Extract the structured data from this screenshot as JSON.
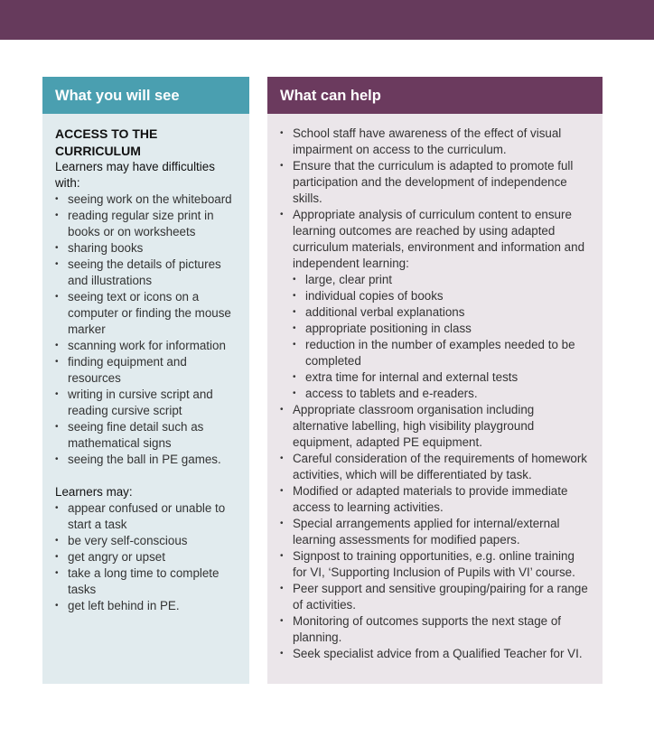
{
  "left": {
    "title": "What you will see",
    "heading": "ACCESS TO THE CURRICULUM",
    "intro": "Learners may have difficulties with:",
    "items": [
      "seeing work on the whiteboard",
      "reading regular size print in books or on worksheets",
      "sharing books",
      "seeing the details of pictures and illustrations",
      "seeing text or icons on a computer or finding the mouse marker",
      "scanning work for information",
      "finding equipment and resources",
      "writing in cursive script and reading cursive script",
      "seeing fine detail such as mathematical signs",
      "seeing the ball in PE games."
    ],
    "intro2": "Learners may:",
    "items2": [
      "appear confused or unable to start a task",
      "be very self-conscious",
      "get angry or upset",
      "take a long time to complete tasks",
      "get left behind in PE."
    ]
  },
  "right": {
    "title": "What can help",
    "items_a": [
      "School staff have awareness of the effect of visual impairment on access to the curriculum.",
      "Ensure that the curriculum is adapted to promote full participation and the development of independence skills.",
      "Appropriate analysis of curriculum content to ensure learning outcomes are reached by using adapted curriculum materials, environment and information and independent learning:"
    ],
    "sub": [
      "large, clear print",
      "individual copies of books",
      "additional verbal explanations",
      "appropriate positioning in class",
      "reduction in the number of examples needed to be completed",
      "extra time for internal and external tests",
      "access to tablets and e-readers."
    ],
    "items_b": [
      "Appropriate classroom organisation including alternative labelling, high visibility playground equipment, adapted PE equipment.",
      "Careful consideration of the requirements of homework activities, which will be differentiated by task.",
      "Modified or adapted materials to provide immediate access to learning activities.",
      "Special arrangements applied for internal/external learning assessments for modified papers.",
      "Signpost to training opportunities, e.g. online training for VI, ‘Supporting Inclusion of Pupils with VI’ course.",
      "Peer support and sensitive grouping/pairing for a range of activities.",
      "Monitoring of outcomes supports the next stage of planning.",
      "Seek specialist advice from a Qualified Teacher for VI."
    ]
  },
  "colors": {
    "topbar": "#663a5c",
    "teal": "#4a9fb0",
    "plum": "#6b3a5e"
  }
}
